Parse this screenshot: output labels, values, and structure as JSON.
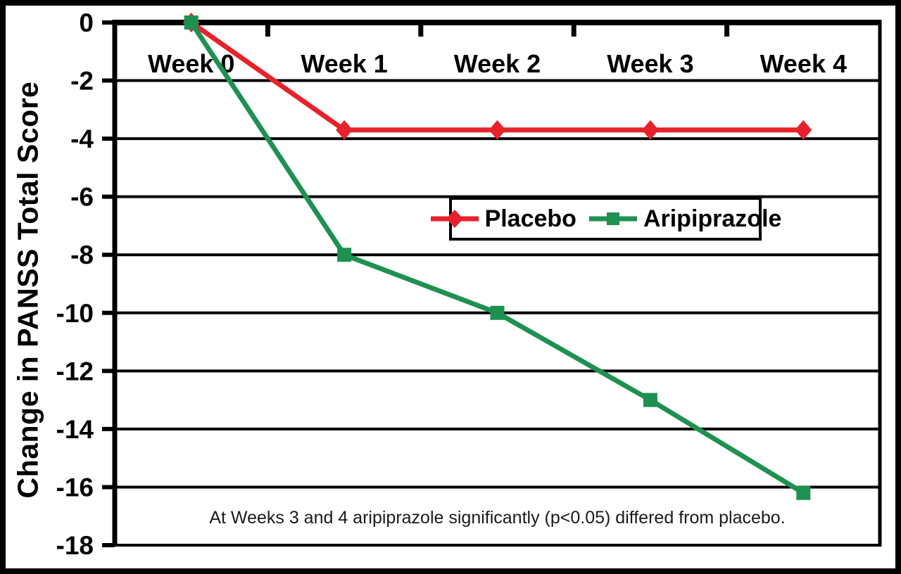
{
  "figure": {
    "background": "#ffffff",
    "border_color": "#000000"
  },
  "chart_data": {
    "type": "line",
    "title": "",
    "xlabel": "",
    "ylabel": "Change in PANSS Total Score",
    "categories": [
      "Week 0",
      "Week 1",
      "Week 2",
      "Week 3",
      "Week 4"
    ],
    "y_ticks": [
      0,
      -2,
      -4,
      -6,
      -8,
      -10,
      -12,
      -14,
      -16,
      -18
    ],
    "ylim": [
      -18,
      0
    ],
    "grid": "horizontal",
    "axis_color": "#000000",
    "legend_position": "inside-middle-right",
    "series": [
      {
        "name": "Placebo",
        "color": "#e8222b",
        "marker": "diamond",
        "values": [
          0,
          -3.7,
          -3.7,
          -3.7,
          -3.7
        ]
      },
      {
        "name": "Aripiprazole",
        "color": "#1e9150",
        "marker": "square",
        "values": [
          0,
          -8,
          -10,
          -13,
          -16.2
        ]
      }
    ],
    "annotation": "At Weeks 3 and 4 aripiprazole significantly (p<0.05) differed from placebo."
  }
}
